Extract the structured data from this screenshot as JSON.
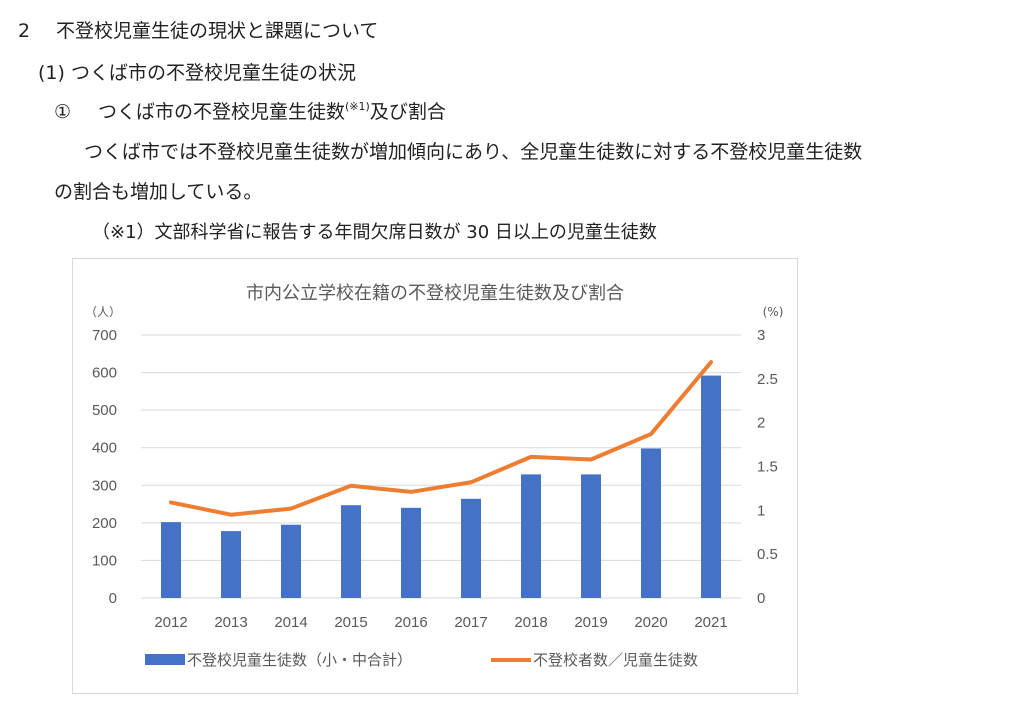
{
  "doc": {
    "heading1_num": "2",
    "heading1_text": "不登校児童生徒の現状と課題について",
    "heading2": "(1) つくば市の不登校児童生徒の状況",
    "heading3_num": "①",
    "heading3_text": "つくば市の不登校児童生徒数",
    "heading3_note_ref": "(※1)",
    "heading3_tail": "及び割合",
    "para_line1": "つくば市では不登校児童生徒数が増加傾向にあり、全児童生徒数に対する不登校児童生徒数",
    "para_line2": "の割合も増加している。",
    "footnote": "（※1）文部科学省に報告する年間欠席日数が 30 日以上の児童生徒数"
  },
  "chart_data": {
    "type": "bar+line",
    "title": "市内公立学校在籍の不登校児童生徒数及び割合",
    "y_left_unit": "（人）",
    "y_right_unit": "(%)",
    "categories": [
      "2012",
      "2013",
      "2014",
      "2015",
      "2016",
      "2017",
      "2018",
      "2019",
      "2020",
      "2021"
    ],
    "y_left_ticks": [
      "0",
      "100",
      "200",
      "300",
      "400",
      "500",
      "600",
      "700"
    ],
    "y_right_ticks": [
      "0",
      "0.5",
      "1",
      "1.5",
      "2",
      "2.5",
      "3"
    ],
    "ylim_left": [
      0,
      700
    ],
    "ylim_right": [
      0,
      3
    ],
    "grid": true,
    "legend_position": "bottom",
    "series": [
      {
        "name": "不登校児童生徒数（小・中合計）",
        "kind": "bar",
        "axis": "left",
        "color": "#4472C4",
        "values": [
          202,
          178,
          195,
          247,
          240,
          264,
          329,
          329,
          398,
          592
        ]
      },
      {
        "name": "不登校者数／児童生徒数",
        "kind": "line",
        "axis": "right",
        "color": "#ED7D31",
        "values": [
          1.09,
          0.95,
          1.02,
          1.28,
          1.21,
          1.32,
          1.61,
          1.58,
          1.87,
          2.69
        ]
      }
    ]
  }
}
